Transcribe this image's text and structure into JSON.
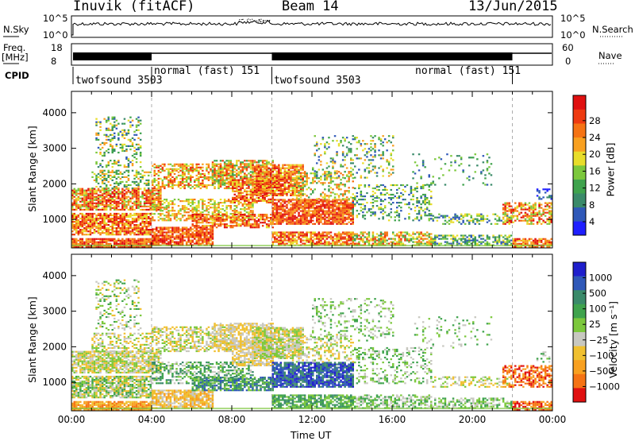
{
  "header": {
    "title": "Inuvik (fitACF)",
    "beam": "Beam 14",
    "date": "13/Jun/2015"
  },
  "top_panels": {
    "nsky_label": "N.Sky",
    "nsky_ticks": [
      "10^5",
      "10^0"
    ],
    "nsearch_label": "N.Search",
    "nsearch_ticks": [
      "10^5",
      "10^0"
    ],
    "freq_label": "Freq.",
    "freq_unit": "[MHz]",
    "freq_ticks": [
      "18",
      "8"
    ],
    "nave_label": "Nave",
    "nave_ticks": [
      "60",
      "0"
    ],
    "cpid_label": "CPID",
    "cpid_segments": [
      {
        "label": "twofsound 3503",
        "start_h": 0
      },
      {
        "label": "normal (fast) 151",
        "start_h": 4
      },
      {
        "label": "twofsound 3503",
        "start_h": 10
      },
      {
        "label": "normal (fast) 151",
        "start_h": 22
      }
    ]
  },
  "chart_data": [
    {
      "type": "heatmap",
      "panel": "power",
      "ylabel": "Slant Range [km]",
      "y_ticks": [
        1000,
        2000,
        3000,
        4000
      ],
      "ylim": [
        200,
        4600
      ],
      "xlim": [
        0,
        24
      ],
      "x_ticks": [
        "00:00",
        "04:00",
        "08:00",
        "12:00",
        "16:00",
        "20:00",
        "00:00"
      ],
      "colorbar": {
        "label": "Power [dB]",
        "ticks": [
          "4",
          "8",
          "12",
          "16",
          "20",
          "24",
          "28"
        ],
        "colors": [
          "#1f1fff",
          "#2f58b8",
          "#3a8a6a",
          "#3fa34d",
          "#7cc83c",
          "#e8dd2a",
          "#f8a020",
          "#f57314",
          "#ee3a10",
          "#e01010"
        ]
      }
    },
    {
      "type": "heatmap",
      "panel": "velocity",
      "ylabel": "Slant Range [km]",
      "y_ticks": [
        1000,
        2000,
        3000,
        4000
      ],
      "ylim": [
        200,
        4600
      ],
      "xlim": [
        0,
        24
      ],
      "x_ticks": [
        "00:00",
        "04:00",
        "08:00",
        "12:00",
        "16:00",
        "20:00",
        "00:00"
      ],
      "xlabel": "Time UT",
      "colorbar": {
        "label": "Velocity [m s⁻¹]",
        "ticks": [
          "1000",
          "500",
          "100",
          "25",
          "−25",
          "−100",
          "−500",
          "−1000"
        ],
        "colors": [
          "#1f1fcc",
          "#2f58b8",
          "#3a8a6a",
          "#3fa34d",
          "#7cc83c",
          "#c8c8c0",
          "#f0c030",
          "#f8a020",
          "#f57314",
          "#e01010"
        ]
      }
    }
  ]
}
